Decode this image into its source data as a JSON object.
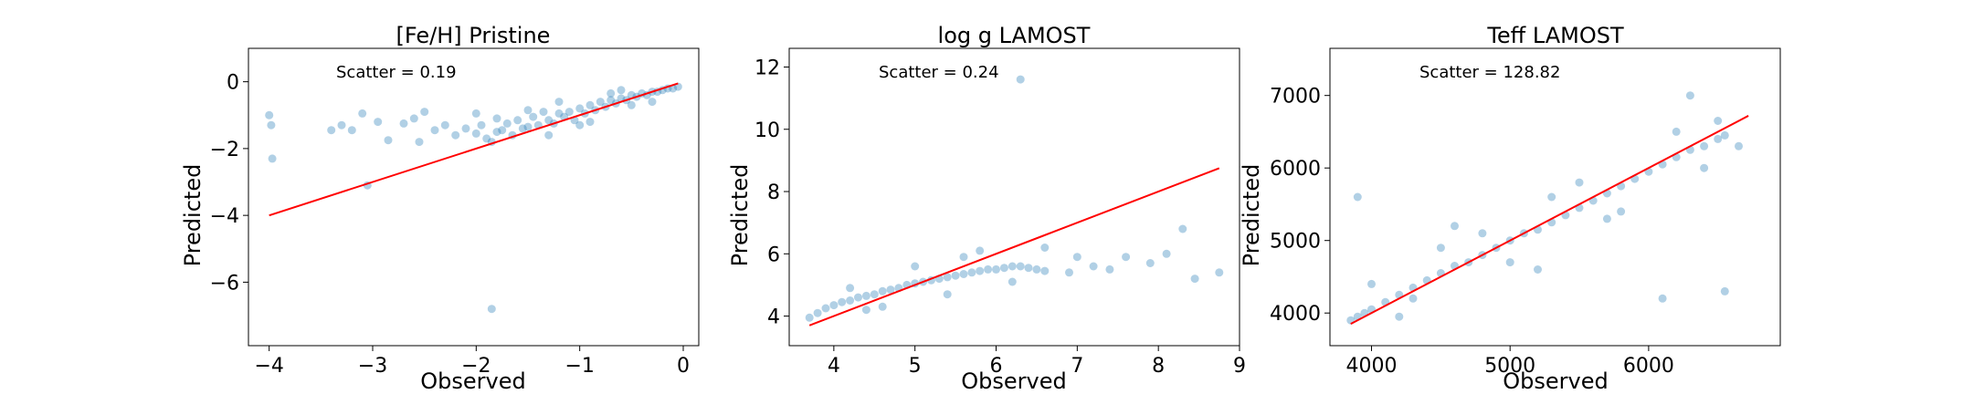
{
  "chart_data": [
    {
      "type": "scatter",
      "title": "[Fe/H] Pristine",
      "xlabel": "Observed",
      "ylabel": "Predicted",
      "xlim": [
        -4.2,
        0.15
      ],
      "ylim": [
        -7.9,
        1.0
      ],
      "xticks": [
        -4,
        -3,
        -2,
        -1,
        0
      ],
      "yticks": [
        -6,
        -4,
        -2,
        0
      ],
      "annotation": "Scatter = 0.19",
      "point_color": "#1f77b4",
      "fit_line_color": "#ff0000",
      "fit_line": {
        "x": [
          -4.0,
          -0.05
        ],
        "y": [
          -4.0,
          -0.05
        ]
      },
      "series": [
        {
          "values": [
            [
              -4.0,
              -1.0
            ],
            [
              -3.98,
              -1.3
            ],
            [
              -3.97,
              -2.3
            ],
            [
              -3.4,
              -1.45
            ],
            [
              -3.3,
              -1.3
            ],
            [
              -3.2,
              -1.45
            ],
            [
              -3.1,
              -0.95
            ],
            [
              -3.05,
              -3.1
            ],
            [
              -2.95,
              -1.2
            ],
            [
              -2.85,
              -1.75
            ],
            [
              -2.7,
              -1.25
            ],
            [
              -2.6,
              -1.1
            ],
            [
              -2.55,
              -1.8
            ],
            [
              -2.5,
              -0.9
            ],
            [
              -2.4,
              -1.45
            ],
            [
              -2.3,
              -1.3
            ],
            [
              -2.2,
              -1.6
            ],
            [
              -2.1,
              -1.4
            ],
            [
              -2.0,
              -1.55
            ],
            [
              -1.95,
              -1.3
            ],
            [
              -1.9,
              -1.7
            ],
            [
              -1.85,
              -1.8
            ],
            [
              -1.8,
              -1.5
            ],
            [
              -1.85,
              -6.8
            ],
            [
              -1.75,
              -1.45
            ],
            [
              -1.7,
              -1.25
            ],
            [
              -1.65,
              -1.6
            ],
            [
              -1.6,
              -1.15
            ],
            [
              -1.55,
              -1.4
            ],
            [
              -1.5,
              -1.35
            ],
            [
              -1.45,
              -1.05
            ],
            [
              -1.4,
              -1.3
            ],
            [
              -1.35,
              -0.9
            ],
            [
              -1.3,
              -1.15
            ],
            [
              -1.25,
              -1.25
            ],
            [
              -1.2,
              -0.95
            ],
            [
              -1.15,
              -1.05
            ],
            [
              -1.1,
              -0.9
            ],
            [
              -1.05,
              -1.15
            ],
            [
              -1.0,
              -0.8
            ],
            [
              -0.95,
              -0.95
            ],
            [
              -0.9,
              -0.7
            ],
            [
              -0.85,
              -0.85
            ],
            [
              -0.8,
              -0.6
            ],
            [
              -0.75,
              -0.75
            ],
            [
              -0.7,
              -0.55
            ],
            [
              -0.65,
              -0.65
            ],
            [
              -0.6,
              -0.5
            ],
            [
              -0.55,
              -0.55
            ],
            [
              -0.5,
              -0.4
            ],
            [
              -0.45,
              -0.45
            ],
            [
              -0.4,
              -0.35
            ],
            [
              -0.35,
              -0.4
            ],
            [
              -0.3,
              -0.3
            ],
            [
              -0.25,
              -0.3
            ],
            [
              -0.2,
              -0.25
            ],
            [
              -0.15,
              -0.2
            ],
            [
              -0.1,
              -0.2
            ],
            [
              -0.05,
              -0.15
            ],
            [
              -0.5,
              -0.7
            ],
            [
              -0.7,
              -0.35
            ],
            [
              -1.0,
              -1.3
            ],
            [
              -1.2,
              -0.6
            ],
            [
              -1.5,
              -0.85
            ],
            [
              -1.8,
              -1.1
            ],
            [
              -2.0,
              -0.95
            ],
            [
              -0.3,
              -0.6
            ],
            [
              -0.9,
              -1.2
            ],
            [
              -0.6,
              -0.25
            ],
            [
              -1.3,
              -1.6
            ]
          ]
        }
      ]
    },
    {
      "type": "scatter",
      "title": "log g LAMOST",
      "xlabel": "Observed",
      "ylabel": "Predicted",
      "xlim": [
        3.45,
        9.0
      ],
      "ylim": [
        3.05,
        12.6
      ],
      "xticks": [
        4,
        5,
        6,
        7,
        8,
        9
      ],
      "yticks": [
        4,
        6,
        8,
        10,
        12
      ],
      "annotation": "Scatter = 0.24",
      "point_color": "#1f77b4",
      "fit_line_color": "#ff0000",
      "fit_line": {
        "x": [
          3.7,
          8.75
        ],
        "y": [
          3.7,
          8.75
        ]
      },
      "series": [
        {
          "values": [
            [
              3.7,
              3.95
            ],
            [
              3.8,
              4.1
            ],
            [
              3.9,
              4.25
            ],
            [
              4.0,
              4.35
            ],
            [
              4.1,
              4.45
            ],
            [
              4.2,
              4.5
            ],
            [
              4.3,
              4.6
            ],
            [
              4.4,
              4.65
            ],
            [
              4.5,
              4.7
            ],
            [
              4.6,
              4.8
            ],
            [
              4.7,
              4.85
            ],
            [
              4.8,
              4.9
            ],
            [
              4.9,
              5.0
            ],
            [
              5.0,
              5.05
            ],
            [
              5.1,
              5.1
            ],
            [
              5.2,
              5.15
            ],
            [
              5.3,
              5.2
            ],
            [
              5.4,
              5.25
            ],
            [
              5.5,
              5.3
            ],
            [
              5.6,
              5.35
            ],
            [
              5.7,
              5.4
            ],
            [
              5.8,
              5.45
            ],
            [
              5.9,
              5.5
            ],
            [
              6.0,
              5.5
            ],
            [
              6.1,
              5.55
            ],
            [
              6.2,
              5.6
            ],
            [
              6.3,
              5.6
            ],
            [
              6.4,
              5.55
            ],
            [
              6.5,
              5.5
            ],
            [
              6.6,
              5.45
            ],
            [
              6.3,
              11.6
            ],
            [
              6.9,
              5.4
            ],
            [
              7.2,
              5.6
            ],
            [
              7.4,
              5.5
            ],
            [
              7.6,
              5.9
            ],
            [
              7.9,
              5.7
            ],
            [
              8.1,
              6.0
            ],
            [
              8.3,
              6.8
            ],
            [
              8.45,
              5.2
            ],
            [
              8.75,
              5.4
            ],
            [
              4.2,
              4.9
            ],
            [
              4.6,
              4.3
            ],
            [
              5.0,
              5.6
            ],
            [
              5.4,
              4.7
            ],
            [
              5.8,
              6.1
            ],
            [
              6.2,
              5.1
            ],
            [
              6.6,
              6.2
            ],
            [
              7.0,
              5.9
            ],
            [
              4.4,
              4.2
            ],
            [
              5.6,
              5.9
            ]
          ]
        }
      ]
    },
    {
      "type": "scatter",
      "title": "Teff LAMOST",
      "xlabel": "Observed",
      "ylabel": "Predicted",
      "xlim": [
        3700,
        6950
      ],
      "ylim": [
        3550,
        7650
      ],
      "xticks": [
        4000,
        5000,
        6000
      ],
      "yticks": [
        4000,
        5000,
        6000,
        7000
      ],
      "annotation": "Scatter = 128.82",
      "point_color": "#1f77b4",
      "fit_line_color": "#ff0000",
      "fit_line": {
        "x": [
          3850,
          6720
        ],
        "y": [
          3850,
          6720
        ]
      },
      "series": [
        {
          "values": [
            [
              3850,
              3900
            ],
            [
              3900,
              3950
            ],
            [
              3950,
              4000
            ],
            [
              4000,
              4050
            ],
            [
              4100,
              4150
            ],
            [
              4200,
              4250
            ],
            [
              4300,
              4350
            ],
            [
              4400,
              4450
            ],
            [
              4500,
              4550
            ],
            [
              4600,
              4650
            ],
            [
              4700,
              4700
            ],
            [
              4800,
              4800
            ],
            [
              4900,
              4900
            ],
            [
              5000,
              5000
            ],
            [
              5100,
              5100
            ],
            [
              5200,
              5150
            ],
            [
              5300,
              5250
            ],
            [
              5400,
              5350
            ],
            [
              5500,
              5450
            ],
            [
              5600,
              5550
            ],
            [
              5700,
              5650
            ],
            [
              5800,
              5750
            ],
            [
              5900,
              5850
            ],
            [
              6000,
              5950
            ],
            [
              6100,
              6050
            ],
            [
              6200,
              6150
            ],
            [
              6300,
              6250
            ],
            [
              6400,
              6300
            ],
            [
              6500,
              6400
            ],
            [
              6550,
              6450
            ],
            [
              3900,
              5600
            ],
            [
              4300,
              4200
            ],
            [
              4600,
              5200
            ],
            [
              5200,
              4600
            ],
            [
              5700,
              5300
            ],
            [
              6100,
              4200
            ],
            [
              6300,
              7000
            ],
            [
              6550,
              4300
            ],
            [
              6650,
              6300
            ],
            [
              6500,
              6650
            ],
            [
              4000,
              4400
            ],
            [
              4200,
              3950
            ],
            [
              4800,
              5100
            ],
            [
              5000,
              4700
            ],
            [
              5500,
              5800
            ],
            [
              5800,
              5400
            ],
            [
              6200,
              6500
            ],
            [
              6400,
              6000
            ],
            [
              4500,
              4900
            ],
            [
              5300,
              5600
            ]
          ]
        }
      ]
    }
  ]
}
